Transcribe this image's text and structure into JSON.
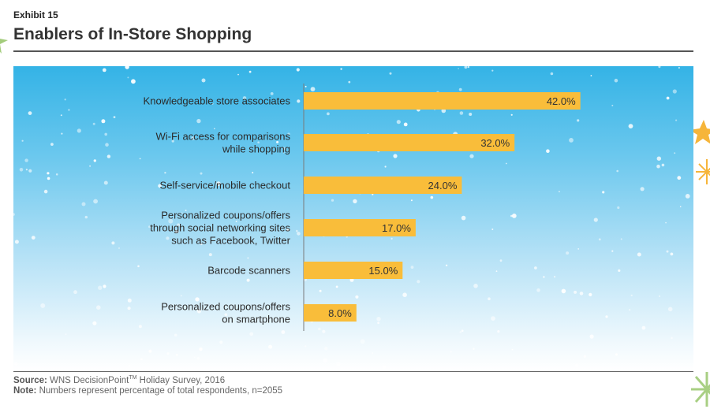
{
  "header": {
    "exhibit": "Exhibit 15",
    "title": "Enablers of In-Store Shopping"
  },
  "footer": {
    "source_label": "Source:",
    "source_text": " WNS DecisionPoint",
    "source_tm": "TM",
    "source_tail": " Holiday Survey, 2016",
    "note_label": "Note:",
    "note_text": " Numbers represent percentage of total respondents, n=2055"
  },
  "colors": {
    "bar": "#f9bd3a",
    "bar_label": "#333333",
    "axis": "#7a7a7a",
    "category_text": "#2a2a2a",
    "sky_top": "#34b3e6",
    "star": "#f6b53a",
    "snowflake": "#8cbf5a"
  },
  "chart_data": {
    "type": "bar",
    "orientation": "horizontal",
    "title": "Enablers of In-Store Shopping",
    "categories": [
      [
        "Knowledgeable store associates"
      ],
      [
        "Wi-Fi access for comparisons",
        "while shopping"
      ],
      [
        "Self-service/mobile checkout"
      ],
      [
        "Personalized coupons/offers",
        "through social networking sites",
        "such as Facebook, Twitter"
      ],
      [
        "Barcode scanners"
      ],
      [
        "Personalized coupons/offers",
        "on smartphone"
      ]
    ],
    "values": [
      42.0,
      32.0,
      24.0,
      17.0,
      15.0,
      8.0
    ],
    "value_labels": [
      "42.0%",
      "32.0%",
      "24.0%",
      "17.0%",
      "15.0%",
      "8.0%"
    ],
    "xlim": [
      0,
      60
    ],
    "grid": false,
    "legend": "none"
  }
}
